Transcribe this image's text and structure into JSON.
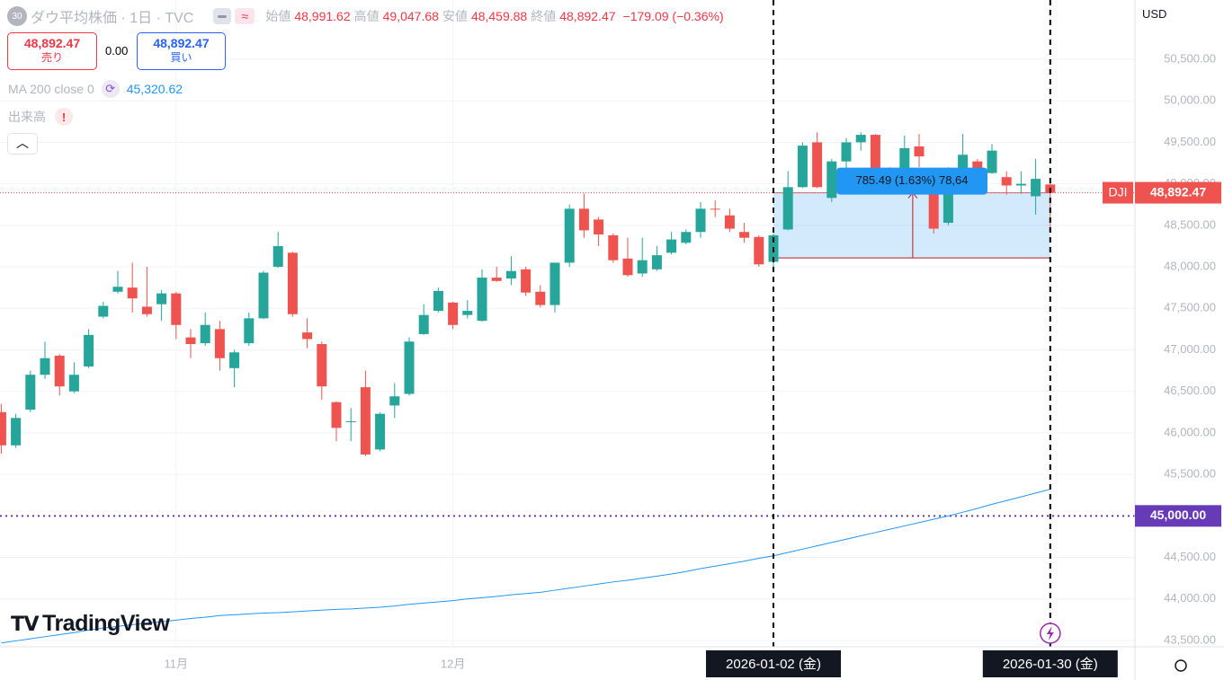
{
  "ui": {
    "symbol_badge": "30",
    "title": "ダウ平均株価 · 1日 · TVC",
    "ohlc": [
      {
        "label": "始値",
        "value": "48,991.62"
      },
      {
        "label": "高値",
        "value": "49,047.68"
      },
      {
        "label": "安値",
        "value": "48,459.88"
      },
      {
        "label": "終値",
        "value": "48,892.47"
      }
    ],
    "change": "−179.09 (−0.36%)",
    "sell": {
      "price": "48,892.47",
      "label": "売り"
    },
    "spread": "0.00",
    "buy": {
      "price": "48,892.47",
      "label": "買い"
    },
    "ma_legend": {
      "label": "MA 200 close 0",
      "value": "45,320.62"
    },
    "volume_label": "出来高",
    "currency": "USD",
    "logo": "TradingView"
  },
  "chart_data": {
    "type": "candlestick",
    "categories": [
      null,
      null,
      null,
      null,
      null,
      null,
      null,
      null,
      null,
      null,
      null,
      null,
      "11月",
      null,
      null,
      null,
      null,
      null,
      null,
      null,
      null,
      null,
      null,
      null,
      null,
      null,
      null,
      null,
      null,
      null,
      null,
      "12月",
      null,
      null,
      null,
      null,
      null,
      null,
      null,
      null,
      null,
      null,
      null,
      null,
      null,
      null,
      null,
      null,
      null,
      null,
      null,
      null,
      null,
      "2026-01-02 (金)",
      null,
      null,
      null,
      null,
      null,
      null,
      null,
      null,
      null,
      null,
      null,
      null,
      null,
      null,
      null,
      null,
      null,
      null,
      "2026-01-30 (金)"
    ],
    "open": [
      46250,
      45850,
      46280,
      46700,
      46930,
      46500,
      46800,
      47400,
      47700,
      47750,
      47520,
      47550,
      47680,
      47150,
      47080,
      47250,
      46780,
      47080,
      47380,
      48000,
      48170,
      47210,
      47070,
      46370,
      46130,
      46550,
      45800,
      46330,
      46470,
      47190,
      47470,
      47570,
      47420,
      47350,
      47870,
      47860,
      47970,
      47700,
      47540,
      48050,
      48700,
      48570,
      48380,
      48100,
      47920,
      47970,
      48170,
      48290,
      48420,
      48700,
      48620,
      48420,
      48360,
      48060,
      48450,
      48960,
      49500,
      48830,
      49270,
      49500,
      49590,
      49160,
      49160,
      49450,
      49000,
      48530,
      49160,
      49270,
      49130,
      49080,
      48980,
      48850,
      48991.62
    ],
    "high": [
      46350,
      46230,
      46750,
      47100,
      46950,
      46850,
      47250,
      47580,
      47950,
      48050,
      48000,
      47720,
      47700,
      47250,
      47450,
      47350,
      47000,
      47450,
      47950,
      48420,
      48180,
      47380,
      47100,
      46380,
      46300,
      46750,
      46250,
      46600,
      47150,
      47550,
      47750,
      47580,
      47600,
      47970,
      48000,
      48130,
      48000,
      47780,
      48050,
      48750,
      48880,
      48600,
      48400,
      48350,
      48350,
      48250,
      48420,
      48450,
      48780,
      48800,
      48700,
      48530,
      48380,
      48400,
      49150,
      49500,
      49620,
      49300,
      49550,
      49620,
      49600,
      49200,
      49580,
      49600,
      49020,
      49200,
      49600,
      49300,
      49480,
      49150,
      49150,
      49300,
      49047.68
    ],
    "low": [
      45750,
      45820,
      46250,
      46650,
      46450,
      46480,
      46780,
      47380,
      47680,
      47450,
      47400,
      47350,
      47130,
      46900,
      47050,
      46750,
      46550,
      47050,
      47370,
      47990,
      47400,
      47020,
      46400,
      45900,
      45900,
      45720,
      45780,
      46180,
      46450,
      47180,
      47450,
      47250,
      47380,
      47340,
      47820,
      47780,
      47650,
      47510,
      47450,
      48000,
      48350,
      48250,
      48050,
      47880,
      47880,
      47950,
      48150,
      48270,
      48350,
      48600,
      48420,
      48290,
      48000,
      47950,
      48440,
      48950,
      48950,
      48780,
      49000,
      49400,
      49050,
      48870,
      49100,
      49200,
      48400,
      48500,
      49140,
      48980,
      49120,
      48870,
      48880,
      48630,
      48459.88
    ],
    "close": [
      45850,
      46180,
      46700,
      46900,
      46560,
      46700,
      47180,
      47530,
      47760,
      47620,
      47430,
      47680,
      47300,
      47070,
      47300,
      46900,
      46970,
      47380,
      47930,
      48250,
      47430,
      47130,
      46560,
      46060,
      46140,
      45740,
      46230,
      46440,
      47100,
      47420,
      47710,
      47300,
      47470,
      47870,
      47830,
      47950,
      47690,
      47540,
      48050,
      48700,
      48440,
      48390,
      48080,
      47900,
      48080,
      48140,
      48330,
      48420,
      48700,
      48690,
      48460,
      48350,
      48030,
      48380,
      48960,
      49460,
      48960,
      49270,
      49500,
      49590,
      49160,
      49050,
      49430,
      49330,
      48460,
      49160,
      49350,
      49050,
      49400,
      48980,
      49000,
      49060,
      48892.47
    ],
    "up_color": "#26a69a",
    "down_color": "#ef5350",
    "series": [
      {
        "name": "MA 200 close 0",
        "color": "#2196f3",
        "values": [
          43470,
          43495,
          43520,
          43545,
          43570,
          43595,
          43625,
          43650,
          43670,
          43690,
          43710,
          43725,
          43745,
          43765,
          43780,
          43800,
          43810,
          43820,
          43830,
          43835,
          43845,
          43855,
          43865,
          43875,
          43880,
          43890,
          43900,
          43915,
          43935,
          43950,
          43965,
          43980,
          44000,
          44015,
          44030,
          44050,
          44065,
          44080,
          44105,
          44130,
          44155,
          44180,
          44205,
          44225,
          44250,
          44275,
          44300,
          44330,
          44365,
          44395,
          44425,
          44455,
          44490,
          44520,
          44560,
          44600,
          44640,
          44680,
          44720,
          44760,
          44800,
          44840,
          44880,
          44920,
          44960,
          45000,
          45045,
          45090,
          45140,
          45185,
          45230,
          45275,
          45320.62
        ]
      }
    ],
    "ylim": [
      43424,
      51214
    ],
    "yticks": [
      {
        "value": 50500,
        "label": "50,500.00"
      },
      {
        "value": 50000,
        "label": "50,000.00"
      },
      {
        "value": 49500,
        "label": "49,500.00"
      },
      {
        "value": 49000,
        "label": "49,000.00"
      },
      {
        "value": 48500,
        "label": "48,500.00"
      },
      {
        "value": 48000,
        "label": "48,000.00"
      },
      {
        "value": 47500,
        "label": "47,500.00"
      },
      {
        "value": 47000,
        "label": "47,000.00"
      },
      {
        "value": 46500,
        "label": "46,500.00"
      },
      {
        "value": 46000,
        "label": "46,000.00"
      },
      {
        "value": 45500,
        "label": "45,500.00"
      },
      {
        "value": 45000,
        "label": "45,000.00"
      },
      {
        "value": 44500,
        "label": "44,500.00"
      },
      {
        "value": 44000,
        "label": "44,000.00"
      },
      {
        "value": 43500,
        "label": "43,500.00"
      }
    ],
    "grid": true,
    "last_price": {
      "symbol": "DJI",
      "value": 48892.47,
      "label": "48,892.47"
    },
    "hline": {
      "value": 45000,
      "label": "45,000.00",
      "color": "#673ab7"
    },
    "date_markers": [
      "2026-01-02 (金)",
      "2026-01-30 (金)"
    ],
    "measure": {
      "low": 48106.98,
      "high": 48892.47,
      "label": "785.49 (1.63%) 78,64"
    }
  }
}
